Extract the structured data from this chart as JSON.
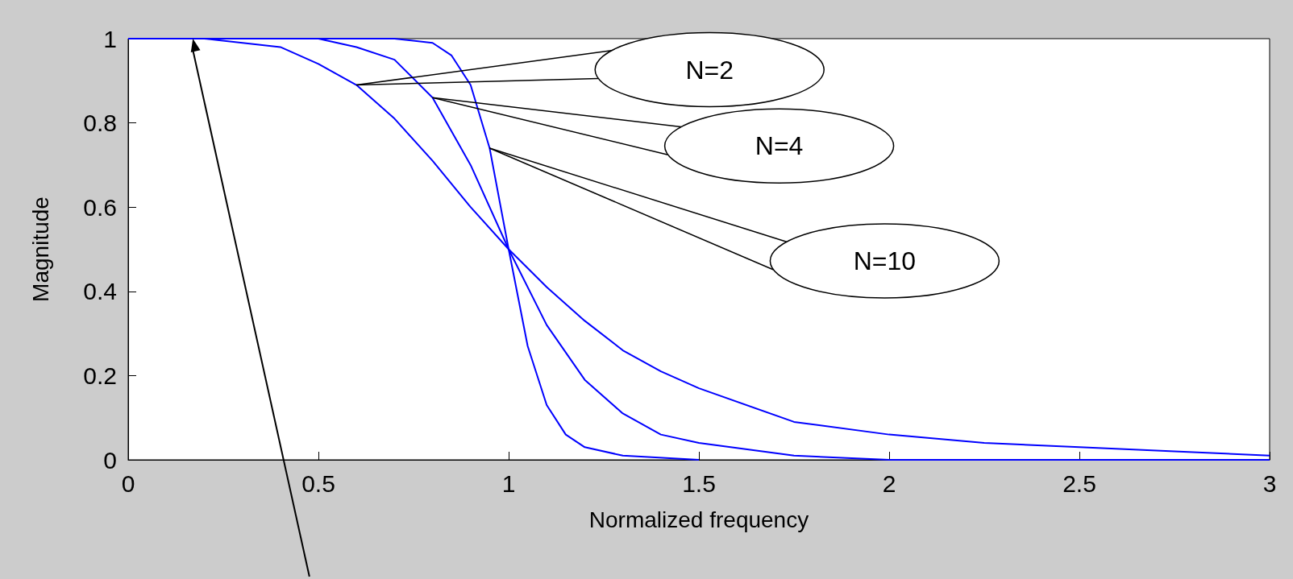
{
  "chart_data": {
    "type": "line",
    "xlabel": "Normalized frequency",
    "ylabel": "Magnitude",
    "xlim": [
      0,
      3
    ],
    "ylim": [
      0,
      1
    ],
    "xticks": [
      0,
      0.5,
      1,
      1.5,
      2,
      2.5,
      3
    ],
    "yticks": [
      0,
      0.2,
      0.4,
      0.6,
      0.8,
      1
    ],
    "grid": false,
    "series": [
      {
        "color": "#0000ff",
        "x": [
          0,
          0.2,
          0.4,
          0.5,
          0.6,
          0.7,
          0.8,
          0.9,
          1,
          1.1,
          1.2,
          1.3,
          1.4,
          1.5,
          1.75,
          2,
          2.25,
          2.5,
          2.75,
          3
        ],
        "values": [
          1,
          1,
          0.98,
          0.94,
          0.89,
          0.81,
          0.71,
          0.6,
          0.5,
          0.41,
          0.33,
          0.26,
          0.21,
          0.17,
          0.09,
          0.06,
          0.04,
          0.03,
          0.02,
          0.01
        ]
      },
      {
        "color": "#0000ff",
        "x": [
          0,
          0.4,
          0.5,
          0.6,
          0.7,
          0.8,
          0.9,
          1,
          1.1,
          1.2,
          1.3,
          1.4,
          1.5,
          1.75,
          2,
          2.5,
          3
        ],
        "values": [
          1,
          1,
          1,
          0.98,
          0.95,
          0.86,
          0.7,
          0.5,
          0.32,
          0.19,
          0.11,
          0.06,
          0.04,
          0.01,
          0,
          0,
          0
        ]
      },
      {
        "color": "#0000ff",
        "x": [
          0,
          0.7,
          0.8,
          0.85,
          0.9,
          0.95,
          1,
          1.05,
          1.1,
          1.15,
          1.2,
          1.3,
          1.5
        ],
        "values": [
          1,
          1,
          0.99,
          0.96,
          0.89,
          0.74,
          0.5,
          0.27,
          0.13,
          0.06,
          0.03,
          0.01,
          0
        ]
      }
    ],
    "annotations": [
      "N=2",
      "N=4",
      "N=10"
    ]
  }
}
